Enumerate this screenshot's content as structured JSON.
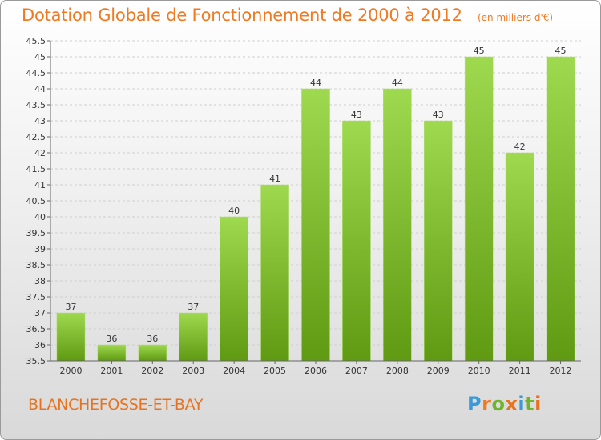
{
  "title": "Dotation Globale de Fonctionnement de 2000 à 2012",
  "unit_note": "(en milliers d'€)",
  "commune": "BLANCHEFOSSE-ET-BAY",
  "logo": {
    "text": "Proxiti",
    "letters": [
      "P",
      "r",
      "o",
      "x",
      "i",
      "t",
      "i"
    ],
    "colors": [
      "#3a9ad9",
      "#f07a22",
      "#6fb42c",
      "#e8731f",
      "#3a9ad9",
      "#6fb42c",
      "#e8731f"
    ]
  },
  "colors": {
    "bar_top": "#9fd94f",
    "bar_bottom": "#5f9a12",
    "title": "#f07a22"
  },
  "chart_data": {
    "type": "bar",
    "categories": [
      "2000",
      "2001",
      "2002",
      "2003",
      "2004",
      "2005",
      "2006",
      "2007",
      "2008",
      "2009",
      "2010",
      "2011",
      "2012"
    ],
    "values": [
      37,
      36,
      36,
      37,
      40,
      41,
      44,
      43,
      44,
      43,
      45,
      42,
      45
    ],
    "value_labels": [
      "37",
      "36",
      "36",
      "37",
      "40",
      "41",
      "44",
      "43",
      "44",
      "43",
      "45",
      "42",
      "45"
    ],
    "ylim": [
      35.5,
      45.5
    ],
    "yticks": [
      "35.5",
      "36",
      "36.5",
      "37",
      "37.5",
      "38",
      "38.5",
      "39",
      "39.5",
      "40",
      "40.5",
      "41",
      "41.5",
      "42",
      "42.5",
      "43",
      "43.5",
      "44",
      "44.5",
      "45",
      "45.5"
    ],
    "grid": true
  }
}
